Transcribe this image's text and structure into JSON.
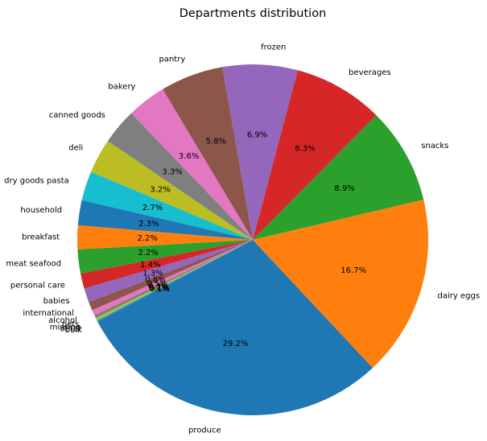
{
  "chart_data": {
    "type": "pie",
    "title": "Departments distribution",
    "start_angle_deg": 208,
    "direction": "counterclockwise",
    "slices": [
      {
        "label": "produce",
        "value": 29.2,
        "pct_label": "29.2%",
        "color": "#1f77b4"
      },
      {
        "label": "dairy eggs",
        "value": 16.7,
        "pct_label": "16.7%",
        "color": "#ff7f0e"
      },
      {
        "label": "snacks",
        "value": 8.9,
        "pct_label": "8.9%",
        "color": "#2ca02c"
      },
      {
        "label": "beverages",
        "value": 8.3,
        "pct_label": "8.3%",
        "color": "#d62728"
      },
      {
        "label": "frozen",
        "value": 6.9,
        "pct_label": "6.9%",
        "color": "#9467bd"
      },
      {
        "label": "pantry",
        "value": 5.8,
        "pct_label": "5.8%",
        "color": "#8c564b"
      },
      {
        "label": "bakery",
        "value": 3.6,
        "pct_label": "3.6%",
        "color": "#e377c2"
      },
      {
        "label": "canned goods",
        "value": 3.3,
        "pct_label": "3.3%",
        "color": "#7f7f7f"
      },
      {
        "label": "deli",
        "value": 3.2,
        "pct_label": "3.2%",
        "color": "#bcbd22"
      },
      {
        "label": "dry goods pasta",
        "value": 2.7,
        "pct_label": "2.7%",
        "color": "#17becf"
      },
      {
        "label": "household",
        "value": 2.3,
        "pct_label": "2.3%",
        "color": "#1f77b4"
      },
      {
        "label": "breakfast",
        "value": 2.2,
        "pct_label": "2.2%",
        "color": "#ff7f0e"
      },
      {
        "label": "meat seafood",
        "value": 2.2,
        "pct_label": "2.2%",
        "color": "#2ca02c"
      },
      {
        "label": "personal care",
        "value": 1.4,
        "pct_label": "1.4%",
        "color": "#d62728"
      },
      {
        "label": "babies",
        "value": 1.3,
        "pct_label": "1.3%",
        "color": "#9467bd"
      },
      {
        "label": "international",
        "value": 0.8,
        "pct_label": "0.8%",
        "color": "#8c564b"
      },
      {
        "label": "alcohol",
        "value": 0.5,
        "pct_label": "0.5%",
        "color": "#e377c2"
      },
      {
        "label": "pets",
        "value": 0.3,
        "pct_label": "0.3%",
        "color": "#7f7f7f"
      },
      {
        "label": "missing",
        "value": 0.2,
        "pct_label": "0.2%",
        "color": "#bcbd22"
      },
      {
        "label": "other",
        "value": 0.1,
        "pct_label": "0.1%",
        "color": "#17becf"
      },
      {
        "label": "bulk",
        "value": 0.1,
        "pct_label": "0.1%",
        "color": "#1f77b4"
      }
    ]
  }
}
